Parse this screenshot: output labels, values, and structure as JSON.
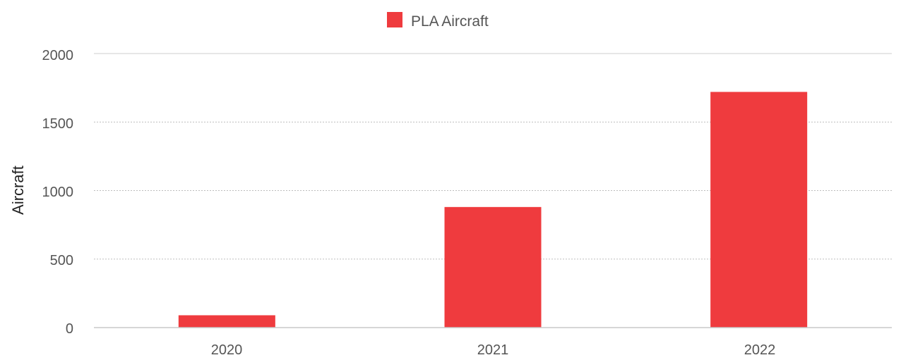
{
  "chart_data": {
    "type": "bar",
    "categories": [
      "2020",
      "2021",
      "2022"
    ],
    "series": [
      {
        "name": "PLA Aircraft",
        "values": [
          90,
          880,
          1720
        ],
        "color": "#ef3b3e"
      }
    ],
    "xlabel": "",
    "ylabel": "Aircraft",
    "ylim": [
      0,
      2000
    ],
    "yticks": [
      "0",
      "500",
      "1000",
      "1500",
      "2000"
    ],
    "ytick_values": [
      0,
      500,
      1000,
      1500,
      2000
    ],
    "grid": true,
    "legend": "top-center"
  }
}
